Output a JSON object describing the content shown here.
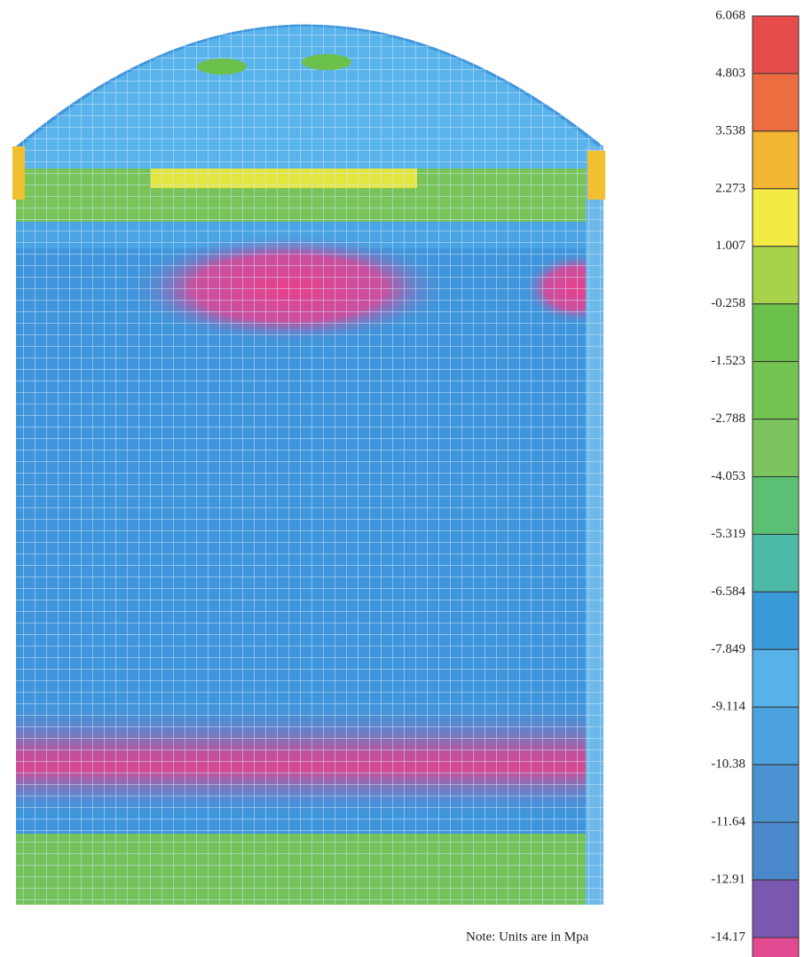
{
  "legend": {
    "labels": [
      "6.068",
      "4.803",
      "3.538",
      "2.273",
      "1.007",
      "-0.258",
      "-1.523",
      "-2.788",
      "-4.053",
      "-5.319",
      "-6.584",
      "-7.849",
      "-9.114",
      "-10.38",
      "-11.64",
      "-12.91",
      "-14.17"
    ],
    "colors": [
      "#e64c4c",
      "#ec6e40",
      "#f2b632",
      "#f4ea44",
      "#a6d24c",
      "#6cc04c",
      "#72c352",
      "#7bc45e",
      "#5cc074",
      "#4cbaa6",
      "#3a9ad8",
      "#58b2ea",
      "#4ca2de",
      "#4a92d2",
      "#4a88cc",
      "#7a58b0",
      "#e24a92"
    ]
  },
  "note": "Note: Units are in Mpa"
}
